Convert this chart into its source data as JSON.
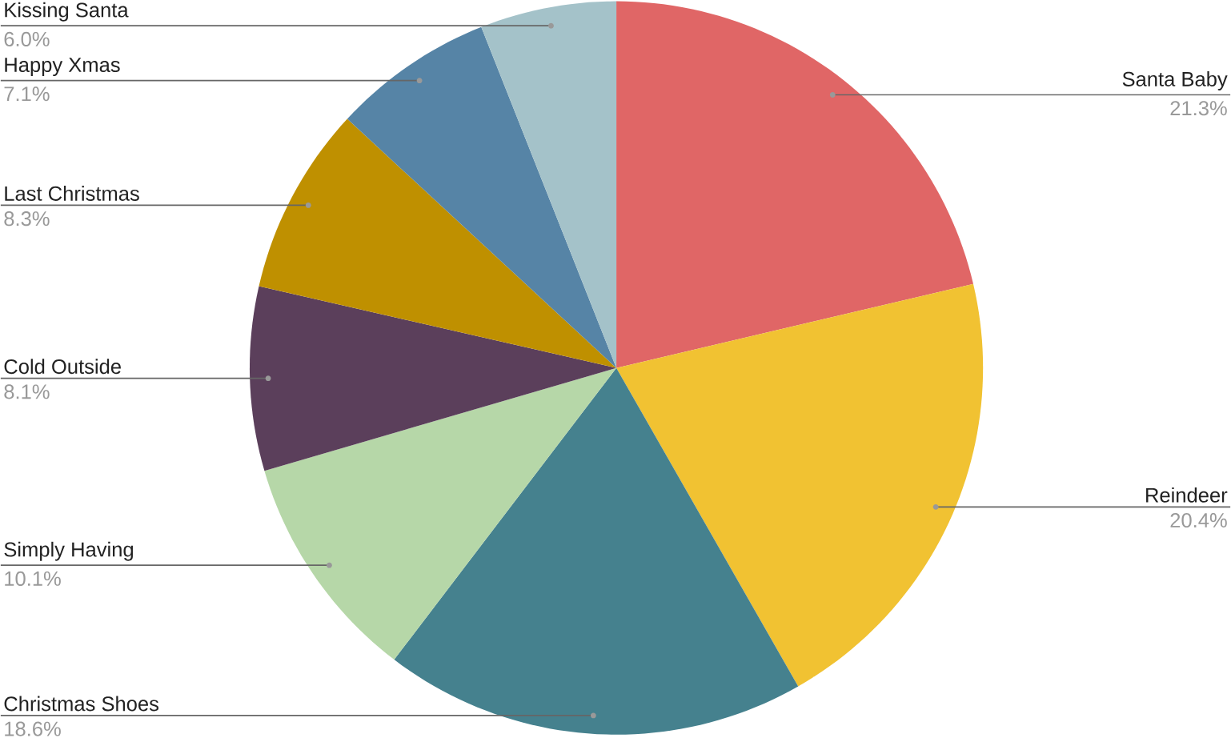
{
  "chart_data": {
    "type": "pie",
    "categories": [
      "Santa Baby",
      "Reindeer",
      "Christmas Shoes",
      "Simply Having",
      "Cold Outside",
      "Last Christmas",
      "Happy Xmas",
      "Kissing Santa"
    ],
    "values": [
      21.3,
      20.4,
      18.6,
      10.1,
      8.1,
      8.3,
      7.1,
      6.0
    ],
    "value_labels": [
      "21.3%",
      "20.4%",
      "18.6%",
      "10.1%",
      "8.1%",
      "8.3%",
      "7.1%",
      "6.0%"
    ],
    "colors": [
      "#e06666",
      "#f1c232",
      "#45818e",
      "#b6d7a8",
      "#5b3f5b",
      "#bf9000",
      "#5684a6",
      "#a4c2c9"
    ]
  }
}
